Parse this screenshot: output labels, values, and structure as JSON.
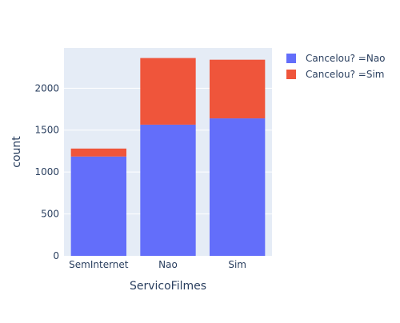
{
  "chart_data": {
    "type": "bar",
    "barmode": "stack",
    "categories": [
      "SemInternet",
      "Nao",
      "Sim"
    ],
    "series": [
      {
        "name": "Cancelou? =Nao",
        "values": [
          1185,
          1565,
          1640
        ],
        "color": "#636efa"
      },
      {
        "name": "Cancelou? =Sim",
        "values": [
          95,
          795,
          700
        ],
        "color": "#ef553b"
      }
    ],
    "xlabel": "ServicoFilmes",
    "ylabel": "count",
    "ylim": [
      0,
      2480
    ],
    "yticks": [
      0,
      500,
      1000,
      1500,
      2000
    ],
    "grid": true,
    "legend_position": "top-right",
    "plot_background": "#e5ecf6"
  }
}
